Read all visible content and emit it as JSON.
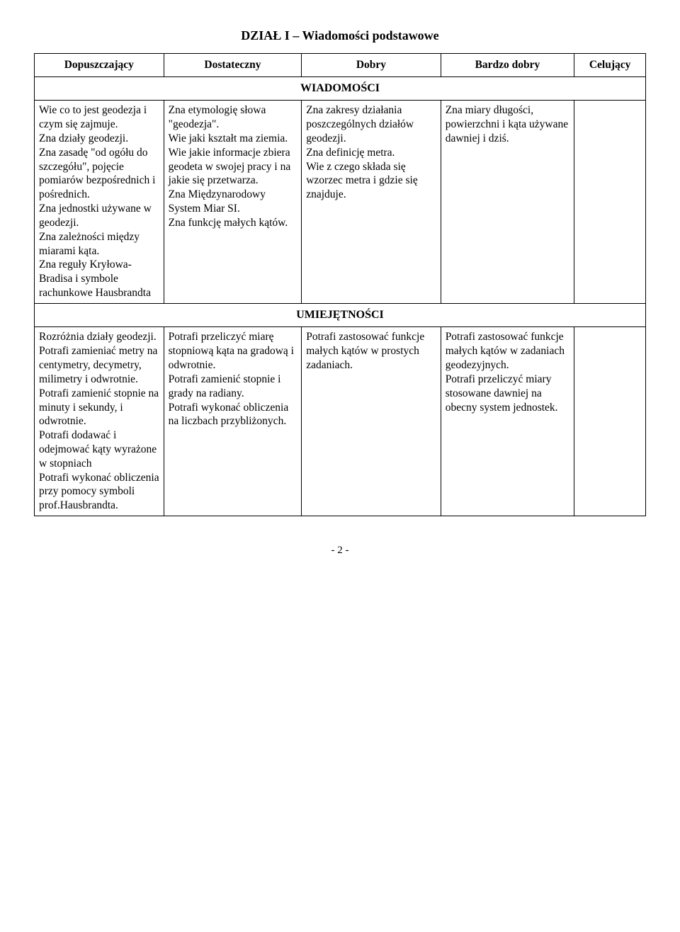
{
  "title": "DZIAŁ I – Wiadomości podstawowe",
  "headers": {
    "col1": "Dopuszczający",
    "col2": "Dostateczny",
    "col3": "Dobry",
    "col4": "Bardzo dobry",
    "col5": "Celujący"
  },
  "sections": {
    "wiadomosci": "WIADOMOŚCI",
    "umiejetnosci": "UMIEJĘTNOŚCI"
  },
  "wiadomosci_row": {
    "c1": "Wie co to jest geodezja i czym się zajmuje.\nZna działy geodezji.\nZna zasadę \"od ogółu do szczegółu\", pojęcie pomiarów bezpośrednich  i pośrednich.\nZna jednostki używane w geodezji.\nZna zależności między miarami kąta.\nZna reguły Kryłowa-Bradisa i symbole rachunkowe Hausbrandta",
    "c2": "Zna etymologię słowa \"geodezja\".\nWie jaki kształt ma ziemia.\nWie jakie informacje zbiera geodeta w swojej pracy i na jakie się przetwarza.\nZna Międzynarodowy System Miar SI.\nZna funkcję małych kątów.",
    "c3": "Zna zakresy działania poszczególnych działów geodezji.\nZna definicję metra.\nWie z czego składa się wzorzec metra i gdzie się znajduje.",
    "c4": "Zna miary długości, powierzchni i kąta używane dawniej i dziś.",
    "c5": ""
  },
  "umiejetnosci_row": {
    "c1": "Rozróżnia działy geodezji.\nPotrafi zamieniać metry na centymetry, decymetry, milimetry i odwrotnie.\nPotrafi zamienić stopnie na minuty i sekundy, i odwrotnie.\nPotrafi dodawać i odejmować kąty wyrażone w stopniach\nPotrafi wykonać obliczenia przy pomocy symboli prof.Hausbrandta.",
    "c2": "Potrafi przeliczyć miarę stopniową  kąta na gradową i odwrotnie.\nPotrafi zamienić stopnie i grady na radiany.\nPotrafi wykonać obliczenia na liczbach przybliżonych.",
    "c3": "Potrafi zastosować funkcje małych kątów w prostych zadaniach.",
    "c4": "Potrafi zastosować funkcje małych kątów w zadaniach geodezyjnych.\nPotrafi przeliczyć miary stosowane dawniej na obecny system jednostek.",
    "c5": ""
  },
  "pageNumber": "- 2 -"
}
